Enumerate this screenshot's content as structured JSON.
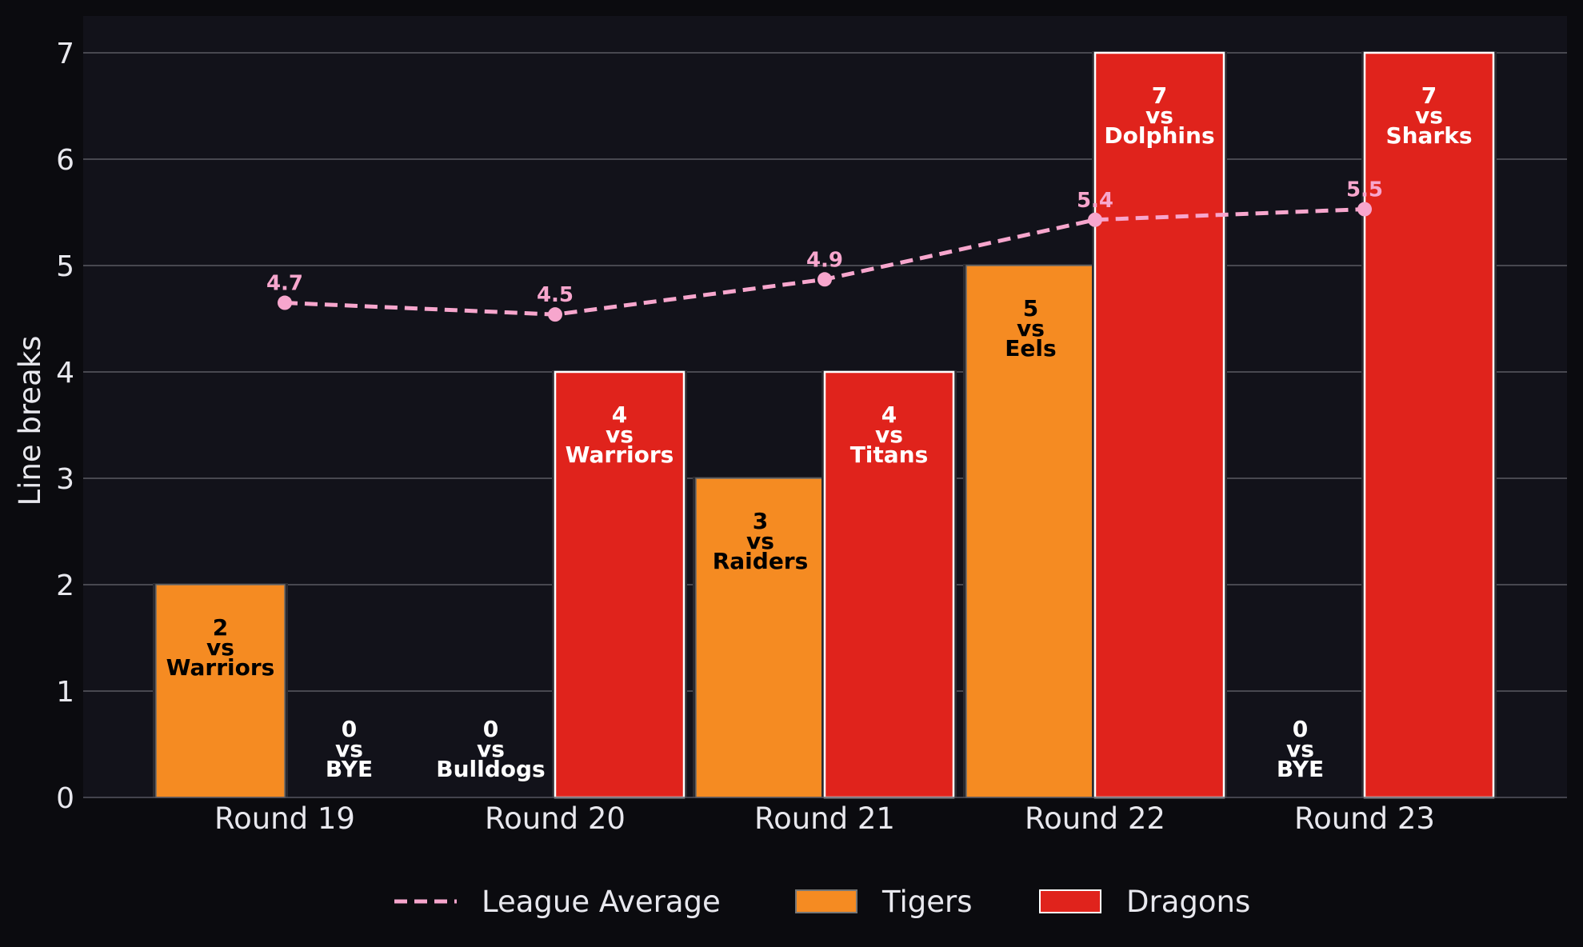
{
  "chart_data": {
    "type": "bar",
    "ylabel": "Line breaks",
    "ylim": [
      0,
      7.35
    ],
    "yticks": [
      0,
      1,
      2,
      3,
      4,
      5,
      6,
      7
    ],
    "grid": "horizontal",
    "legend_position": "bottom",
    "categories": [
      "Round 19",
      "Round 20",
      "Round 21",
      "Round 22",
      "Round 23"
    ],
    "series": [
      {
        "name": "Tigers",
        "color": "#f58b22",
        "values": [
          2,
          0,
          3,
          5,
          0
        ],
        "opponents": [
          "Warriors",
          "Bulldogs",
          "Raiders",
          "Eels",
          "BYE"
        ]
      },
      {
        "name": "Dragons",
        "color": "#e0231c",
        "values": [
          0,
          4,
          4,
          7,
          7
        ],
        "opponents": [
          "BYE",
          "Warriors",
          "Titans",
          "Dolphins",
          "Sharks"
        ]
      }
    ],
    "line": {
      "name": "League Average",
      "color": "#f7a6cd",
      "values": [
        4.65,
        4.54,
        4.87,
        5.43,
        5.53
      ],
      "labels": [
        "4.7",
        "4.5",
        "4.9",
        "5.4",
        "5.5"
      ]
    },
    "vs_word": "vs"
  }
}
